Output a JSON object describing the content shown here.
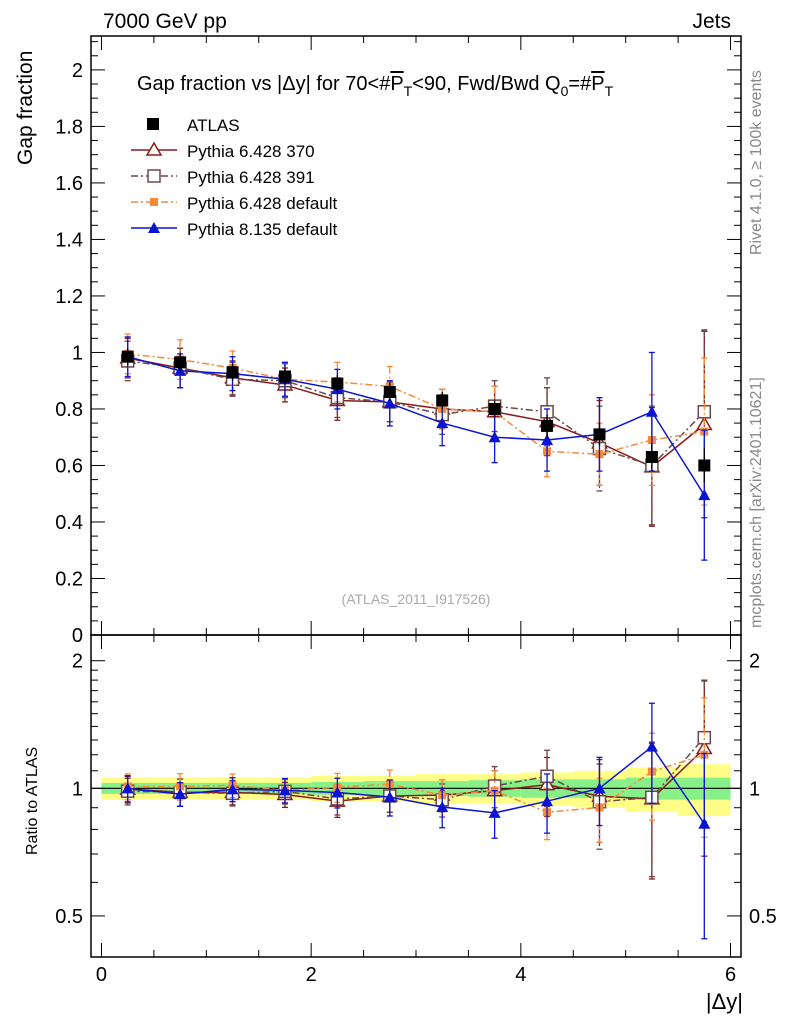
{
  "header": {
    "left": "7000 GeV pp",
    "right": "Jets"
  },
  "side_labels": {
    "rivet": "Rivet 4.1.0, ≥ 100k events",
    "mcplots": "mcplots.cern.ch [arXiv:2401.10621]"
  },
  "chart_data": {
    "type": "scatter",
    "title": "Gap fraction vs |Δy| for 70<#P_T<90, Fwd/Bwd Q_0=#P_T",
    "title_parts": {
      "t1": "Gap fraction vs |Δy| for 70<#",
      "p": "P",
      "sub_t": "T",
      "t2": "<90, Fwd/Bwd Q",
      "sub_0": "0",
      "t3": "=#",
      "p2": "P",
      "sub_t2": "T"
    },
    "xlabel": "|Δy|",
    "ylabel": "Gap fraction",
    "ratio_ylabel": "Ratio to ATLAS",
    "watermark": "(ATLAS_2011_I917526)",
    "xlim": [
      -0.1,
      6.1
    ],
    "ylim": [
      0,
      2.12
    ],
    "ratio_ylim": [
      0.4,
      2.3
    ],
    "x_ticks": [
      "0",
      "2",
      "4",
      "6"
    ],
    "y_ticks": [
      "0",
      "0.2",
      "0.4",
      "0.6",
      "0.8",
      "1",
      "1.2",
      "1.4",
      "1.6",
      "1.8",
      "2"
    ],
    "ratio_ticks": [
      "0.5",
      "1",
      "2"
    ],
    "x": [
      0.25,
      0.75,
      1.25,
      1.75,
      2.25,
      2.75,
      3.25,
      3.75,
      4.25,
      4.75,
      5.25,
      5.75
    ],
    "data": {
      "name": "ATLAS",
      "values": [
        0.985,
        0.965,
        0.93,
        0.915,
        0.89,
        0.86,
        0.83,
        0.8,
        0.74,
        0.71,
        0.63,
        0.6
      ],
      "errors": [
        0.03,
        0.03,
        0.03,
        0.03,
        0.03,
        0.03,
        0.03,
        0.03,
        0.04,
        0.04,
        0.05,
        0.06
      ]
    },
    "series": [
      {
        "name": "Pythia 6.428 370",
        "color": "#8b1a1a",
        "marker": "triangle-open",
        "dash": "",
        "values": [
          0.98,
          0.945,
          0.91,
          0.885,
          0.83,
          0.825,
          0.8,
          0.79,
          0.755,
          0.68,
          0.595,
          0.745
        ],
        "errors": [
          0.07,
          0.07,
          0.06,
          0.06,
          0.07,
          0.07,
          0.07,
          0.09,
          0.12,
          0.15,
          0.21,
          0.33
        ]
      },
      {
        "name": "Pythia 6.428 391",
        "color": "#6b4848",
        "marker": "square-open",
        "dash": "7 3 2 3",
        "values": [
          0.97,
          0.945,
          0.905,
          0.9,
          0.84,
          0.825,
          0.78,
          0.81,
          0.79,
          0.66,
          0.6,
          0.79
        ],
        "errors": [
          0.07,
          0.07,
          0.06,
          0.06,
          0.07,
          0.07,
          0.07,
          0.09,
          0.12,
          0.15,
          0.21,
          0.29
        ]
      },
      {
        "name": "Pythia 6.428 default",
        "color": "#f58a3c",
        "marker": "square-filled",
        "dash": "7 3 2 3",
        "values": [
          0.995,
          0.975,
          0.945,
          0.905,
          0.895,
          0.88,
          0.8,
          0.79,
          0.65,
          0.64,
          0.69,
          0.72
        ],
        "errors": [
          0.07,
          0.07,
          0.06,
          0.06,
          0.07,
          0.07,
          0.07,
          0.09,
          0.09,
          0.11,
          0.16,
          0.26
        ]
      },
      {
        "name": "Pythia 8.135 default",
        "color": "#0a14d2",
        "marker": "triangle-filled",
        "dash": "",
        "values": [
          0.985,
          0.935,
          0.925,
          0.905,
          0.87,
          0.82,
          0.75,
          0.7,
          0.69,
          0.71,
          0.79,
          0.495
        ],
        "errors": [
          0.07,
          0.06,
          0.06,
          0.06,
          0.07,
          0.08,
          0.08,
          0.09,
          0.11,
          0.13,
          0.21,
          0.23
        ]
      }
    ],
    "ratio_band": {
      "inner": [
        0.03,
        0.03,
        0.03,
        0.03,
        0.035,
        0.04,
        0.04,
        0.045,
        0.05,
        0.05,
        0.06,
        0.06
      ],
      "outer": [
        0.06,
        0.06,
        0.06,
        0.06,
        0.07,
        0.07,
        0.08,
        0.08,
        0.09,
        0.1,
        0.12,
        0.14
      ]
    }
  }
}
